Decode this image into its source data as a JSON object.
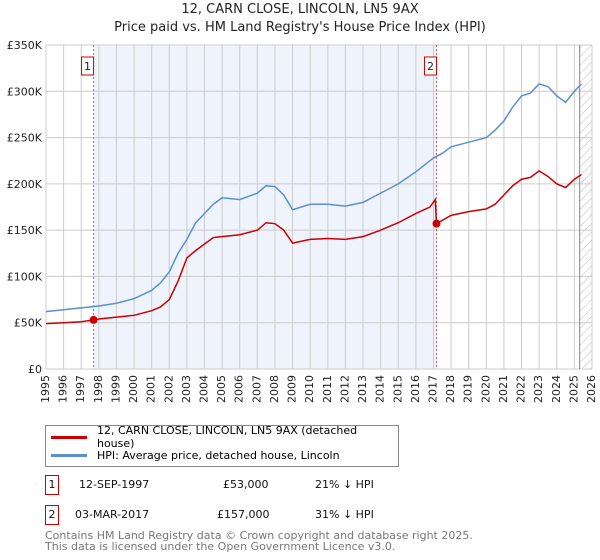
{
  "title": "12, CARN CLOSE, LINCOLN, LN5 9AX",
  "subtitle": "Price paid vs. HM Land Registry's House Price Index (HPI)",
  "chart_data": {
    "type": "line",
    "title": "12, CARN CLOSE, LINCOLN, LN5 9AX",
    "subtitle": "Price paid vs. HM Land Registry's House Price Index (HPI)",
    "xlim": [
      1995,
      2026
    ],
    "ylim": [
      0,
      350000
    ],
    "x_ticks": [
      "1995",
      "1996",
      "1997",
      "1998",
      "1999",
      "2000",
      "2001",
      "2002",
      "2003",
      "2004",
      "2005",
      "2006",
      "2007",
      "2008",
      "2009",
      "2010",
      "2011",
      "2012",
      "2013",
      "2014",
      "2015",
      "2016",
      "2017",
      "2018",
      "2019",
      "2020",
      "2021",
      "2022",
      "2023",
      "2024",
      "2025",
      "2026"
    ],
    "y_ticks": [
      {
        "v": 0,
        "label": "£0"
      },
      {
        "v": 50000,
        "label": "£50K"
      },
      {
        "v": 100000,
        "label": "£100K"
      },
      {
        "v": 150000,
        "label": "£150K"
      },
      {
        "v": 200000,
        "label": "£200K"
      },
      {
        "v": 250000,
        "label": "£250K"
      },
      {
        "v": 300000,
        "label": "£300K"
      },
      {
        "v": 350000,
        "label": "£350K"
      }
    ],
    "grid": true,
    "shaded_range": [
      1997.7,
      2017.17
    ],
    "future_hatch_from": 2025.3,
    "series": [
      {
        "name": "12, CARN CLOSE, LINCOLN, LN5 9AX (detached house)",
        "color": "#cc0000",
        "x": [
          1995,
          1996,
          1997,
          1997.7,
          1998,
          1999,
          2000,
          2001,
          2001.5,
          2002,
          2002.5,
          2003,
          2003.5,
          2004,
          2004.5,
          2005,
          2006,
          2007,
          2007.5,
          2008,
          2008.5,
          2009,
          2009.5,
          2010,
          2011,
          2012,
          2013,
          2014,
          2015,
          2016,
          2016.8,
          2017.1,
          2017.17,
          2018,
          2019,
          2020,
          2020.5,
          2021,
          2021.5,
          2022,
          2022.5,
          2023,
          2023.5,
          2024,
          2024.5,
          2025,
          2025.4
        ],
        "y": [
          49000,
          50000,
          51000,
          53000,
          54000,
          56000,
          58000,
          63000,
          67000,
          75000,
          95000,
          120000,
          128000,
          135000,
          142000,
          143000,
          145000,
          150000,
          158000,
          157000,
          150000,
          136000,
          138000,
          140000,
          141000,
          140000,
          143000,
          150000,
          158000,
          168000,
          175000,
          183000,
          157000,
          166000,
          170000,
          173000,
          178000,
          188000,
          198000,
          205000,
          207000,
          214000,
          208000,
          200000,
          196000,
          205000,
          210000
        ]
      },
      {
        "name": "HPI: Average price, detached house, Lincoln",
        "color": "#5b8fd1",
        "x": [
          1995,
          1996,
          1997,
          1998,
          1999,
          2000,
          2001,
          2001.5,
          2002,
          2002.5,
          2003,
          2003.5,
          2004,
          2004.5,
          2005,
          2006,
          2007,
          2007.5,
          2008,
          2008.5,
          2009,
          2009.5,
          2010,
          2011,
          2012,
          2013,
          2014,
          2015,
          2016,
          2016.8,
          2017,
          2017.5,
          2018,
          2019,
          2020,
          2020.5,
          2021,
          2021.5,
          2022,
          2022.5,
          2023,
          2023.5,
          2024,
          2024.5,
          2025,
          2025.4
        ],
        "y": [
          62000,
          64000,
          66000,
          68000,
          71000,
          76000,
          85000,
          93000,
          105000,
          125000,
          140000,
          158000,
          168000,
          178000,
          185000,
          183000,
          190000,
          198000,
          197000,
          188000,
          172000,
          175000,
          178000,
          178000,
          176000,
          180000,
          190000,
          200000,
          213000,
          225000,
          228000,
          233000,
          240000,
          245000,
          250000,
          258000,
          268000,
          283000,
          295000,
          298000,
          308000,
          305000,
          295000,
          288000,
          300000,
          308000
        ]
      }
    ],
    "annotations": [
      {
        "label": "1",
        "x": 1997.7
      },
      {
        "label": "2",
        "x": 2017.17
      }
    ]
  },
  "legend": {
    "property": "12, CARN CLOSE, LINCOLN, LN5 9AX (detached house)",
    "hpi": "HPI: Average price, detached house, Lincoln"
  },
  "transactions": [
    {
      "num": "1",
      "date": "12-SEP-1997",
      "price": "£53,000",
      "hpi": "21% ↓ HPI"
    },
    {
      "num": "2",
      "date": "03-MAR-2017",
      "price": "£157,000",
      "hpi": "31% ↓ HPI"
    }
  ],
  "footer": [
    "Contains HM Land Registry data © Crown copyright and database right 2025.",
    "This data is licensed under the Open Government Licence v3.0."
  ]
}
